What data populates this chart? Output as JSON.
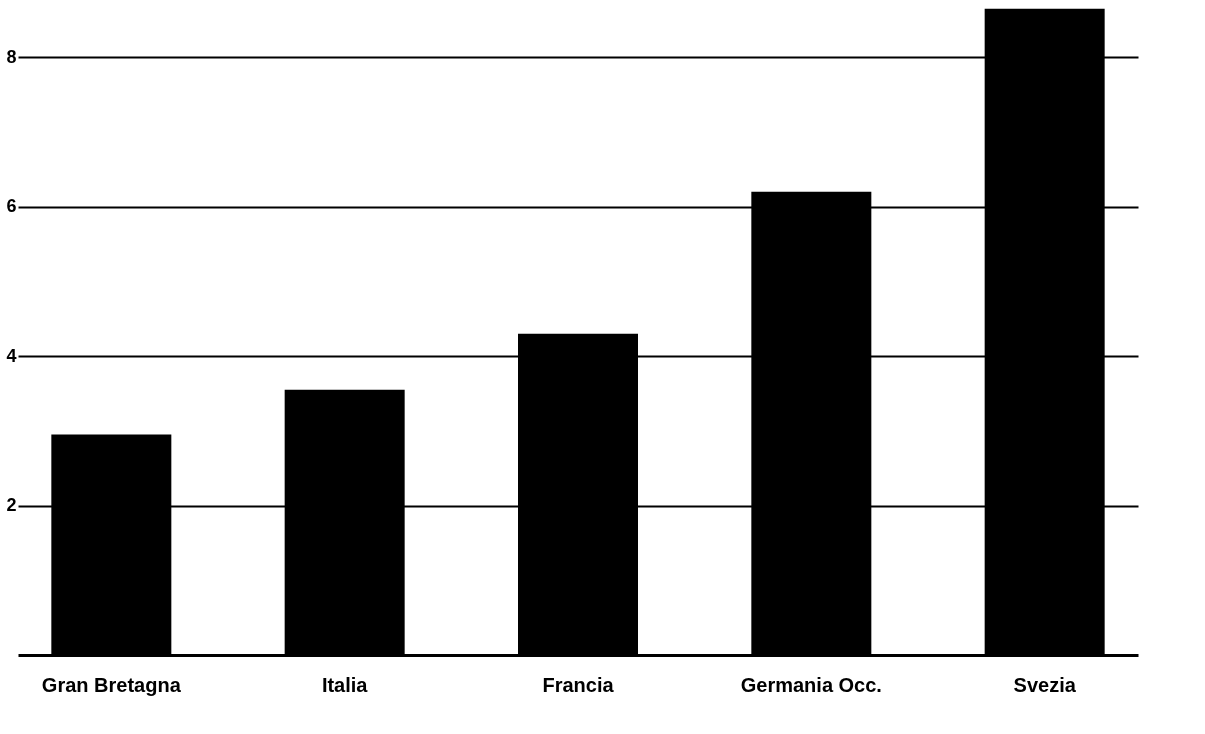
{
  "chart_data": {
    "type": "bar",
    "categories": [
      "Gran Bretagna",
      "Italia",
      "Francia",
      "Germania Occ.",
      "Svezia"
    ],
    "values": [
      2.95,
      3.55,
      4.3,
      6.2,
      8.65
    ],
    "color": "#000000",
    "ylim": [
      0,
      8.7
    ],
    "yticks": [
      2,
      4,
      6,
      8
    ],
    "grid": "y"
  }
}
